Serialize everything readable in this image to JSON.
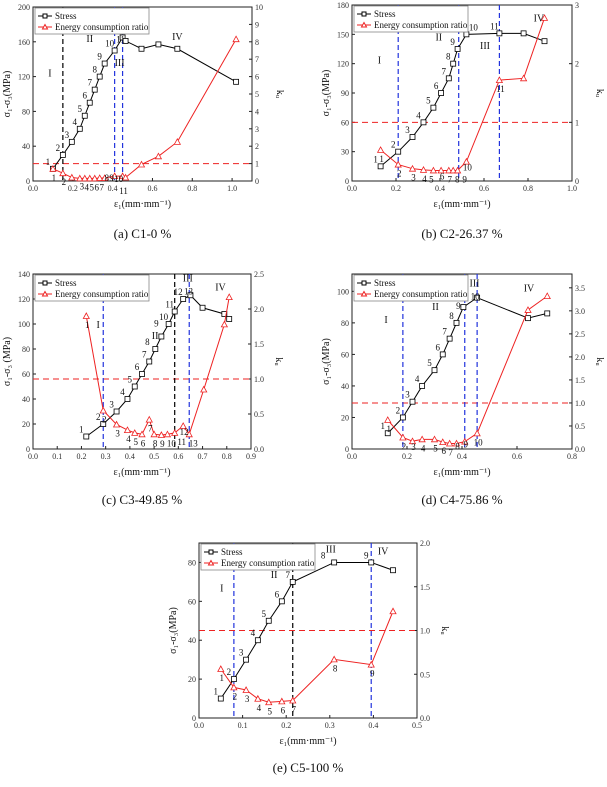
{
  "chart_data": [
    {
      "type": "line",
      "caption": "(a) C1-0 %",
      "xlabel": "ε₁(mm·mm⁻¹)",
      "ylabel": "σ₁-σ₃(MPa)",
      "ylabel_right": "kᵤ",
      "xlim": [
        0,
        1.1
      ],
      "xticks": [
        0.0,
        0.2,
        0.4,
        0.6,
        0.8,
        1.0
      ],
      "ylim": [
        0,
        200
      ],
      "yticks": [
        0,
        40,
        80,
        120,
        160,
        200
      ],
      "y2lim": [
        0,
        10
      ],
      "y2ticks": [
        0,
        1,
        2,
        3,
        4,
        5,
        6,
        7,
        8,
        9,
        10
      ],
      "legend": [
        "Stress",
        "Energy consumption ratio"
      ],
      "legend_position": "top-left",
      "threshold_right": 1,
      "dividers": [
        {
          "x": 0.15,
          "color": "#000000"
        },
        {
          "x": 0.41,
          "color": "#2233dd"
        },
        {
          "x": 0.45,
          "color": "#2233dd"
        }
      ],
      "stages": [
        "I",
        "II",
        "III",
        "IV"
      ],
      "series": [
        {
          "name": "Stress",
          "axis": "left",
          "color": "#000000",
          "x": [
            0.1,
            0.15,
            0.195,
            0.235,
            0.26,
            0.285,
            0.31,
            0.335,
            0.36,
            0.41,
            0.45,
            0.465,
            0.545,
            0.63,
            0.725,
            1.02
          ],
          "y": [
            14,
            30,
            45,
            60,
            75,
            90,
            105,
            120,
            135,
            150,
            165,
            161,
            152,
            157,
            152,
            114
          ],
          "labels": [
            "1",
            "2",
            "3",
            "4",
            "5",
            "6",
            "7",
            "8",
            "9",
            "10",
            "11"
          ]
        },
        {
          "name": "Energy consumption ratio",
          "axis": "right",
          "color": "#ee2222",
          "x": [
            0.1,
            0.15,
            0.195,
            0.235,
            0.26,
            0.285,
            0.31,
            0.335,
            0.36,
            0.41,
            0.45,
            0.465,
            0.545,
            0.63,
            0.725,
            1.02
          ],
          "y": [
            0.7,
            0.45,
            0.2,
            0.15,
            0.15,
            0.15,
            0.15,
            0.17,
            0.17,
            0.28,
            0.28,
            0.2,
            0.95,
            1.42,
            2.25,
            8.15
          ],
          "labels": [
            "1",
            "2",
            "3",
            "4",
            "5",
            "6",
            "7",
            "8",
            "9",
            "10",
            "11"
          ]
        }
      ]
    },
    {
      "type": "line",
      "caption": "(b) C2-26.37 %",
      "xlabel": "ε₁(mm·mm⁻¹)",
      "ylabel": "σ₁-σ₃(MPa)",
      "ylabel_right": "kᵤ",
      "xlim": [
        0,
        1
      ],
      "xticks": [
        0.0,
        0.2,
        0.4,
        0.6,
        0.8,
        1.0
      ],
      "ylim": [
        0,
        180
      ],
      "yticks": [
        0,
        30,
        60,
        90,
        120,
        150,
        180
      ],
      "y2lim": [
        0,
        3
      ],
      "y2ticks": [
        0,
        1,
        2,
        3
      ],
      "legend": [
        "Stress",
        "Energy consumption ratio"
      ],
      "legend_position": "top-left",
      "threshold_right": 1,
      "dividers": [
        {
          "x": 0.21,
          "color": "#2233dd"
        },
        {
          "x": 0.485,
          "color": "#2233dd"
        },
        {
          "x": 0.67,
          "color": "#2233dd"
        }
      ],
      "stages": [
        "I",
        "II",
        "III",
        "IV"
      ],
      "series": [
        {
          "name": "Stress",
          "axis": "left",
          "color": "#000000",
          "x": [
            0.13,
            0.21,
            0.275,
            0.325,
            0.37,
            0.405,
            0.44,
            0.46,
            0.48,
            0.52,
            0.67,
            0.78,
            0.875
          ],
          "y": [
            15,
            30,
            45,
            60,
            75,
            90,
            105,
            120,
            135,
            150,
            151,
            151,
            143
          ],
          "labels": [
            "1",
            "2",
            "3",
            "4",
            "5",
            "6",
            "7",
            "8",
            "9",
            "10",
            "11"
          ]
        },
        {
          "name": "Energy consumption ratio",
          "axis": "right",
          "color": "#ee2222",
          "x": [
            0.13,
            0.21,
            0.275,
            0.325,
            0.37,
            0.405,
            0.44,
            0.46,
            0.48,
            0.52,
            0.67,
            0.78,
            0.875
          ],
          "y": [
            0.53,
            0.28,
            0.21,
            0.19,
            0.18,
            0.18,
            0.18,
            0.18,
            0.18,
            0.33,
            1.72,
            1.75,
            2.78
          ],
          "labels": [
            "1",
            "2",
            "3",
            "4",
            "5",
            "6",
            "7",
            "8",
            "9",
            "10",
            "11"
          ]
        }
      ]
    },
    {
      "type": "line",
      "caption": "(c) C3-49.85 %",
      "xlabel": "ε₁(mm·mm⁻¹)",
      "ylabel": "σ₁-σ₃ (MPa)",
      "ylabel_right": "kᵤ",
      "xlim": [
        0,
        0.9
      ],
      "xticks": [
        0.0,
        0.1,
        0.2,
        0.3,
        0.4,
        0.5,
        0.6,
        0.7,
        0.8,
        0.9
      ],
      "ylim": [
        0,
        140
      ],
      "yticks": [
        0,
        20,
        40,
        60,
        80,
        100,
        120,
        140
      ],
      "y2lim": [
        0,
        2.5
      ],
      "y2ticks": [
        0.0,
        0.5,
        1.0,
        1.5,
        2.0,
        2.5
      ],
      "legend": [
        "Stress",
        "Energy consumption ratio"
      ],
      "legend_position": "top-left",
      "threshold_right": 1,
      "dividers": [
        {
          "x": 0.29,
          "color": "#2233dd"
        },
        {
          "x": 0.585,
          "color": "#000000"
        },
        {
          "x": 0.645,
          "color": "#2233dd"
        }
      ],
      "stages": [
        "I",
        "II",
        "III",
        "IV"
      ],
      "series": [
        {
          "name": "Stress",
          "axis": "left",
          "color": "#000000",
          "x": [
            0.22,
            0.29,
            0.345,
            0.39,
            0.42,
            0.45,
            0.48,
            0.505,
            0.53,
            0.56,
            0.585,
            0.62,
            0.65,
            0.7,
            0.79,
            0.81
          ],
          "y": [
            10,
            20,
            30,
            40,
            50,
            60,
            70,
            80,
            90,
            100,
            110,
            120,
            123,
            113,
            108,
            104
          ],
          "labels": [
            "1",
            "2",
            "3",
            "4",
            "5",
            "6",
            "7",
            "8",
            "9",
            "10",
            "11",
            "12",
            "13"
          ]
        },
        {
          "name": "Energy consumption ratio",
          "axis": "right",
          "color": "#ee2222",
          "x": [
            0.22,
            0.29,
            0.345,
            0.39,
            0.42,
            0.45,
            0.48,
            0.5,
            0.53,
            0.555,
            0.585,
            0.62,
            0.645,
            0.705,
            0.79,
            0.81
          ],
          "y": [
            1.9,
            0.55,
            0.35,
            0.27,
            0.23,
            0.21,
            0.42,
            0.21,
            0.2,
            0.21,
            0.23,
            0.33,
            0.21,
            0.85,
            1.78,
            2.17
          ],
          "labels": [
            "1",
            "2",
            "3",
            "4",
            "5",
            "6",
            "7",
            "8",
            "9",
            "10",
            "11",
            "12",
            "13"
          ]
        }
      ]
    },
    {
      "type": "line",
      "caption": "(d) C4-75.86 %",
      "xlabel": "ε₁(mm·mm⁻¹)",
      "ylabel": "σ₁-σ₃(MPa)",
      "ylabel_right": "kᵤ",
      "xlim": [
        0,
        0.8
      ],
      "xticks": [
        0.0,
        0.2,
        0.4,
        0.6,
        0.8
      ],
      "ylim": [
        0,
        111
      ],
      "yticks": [
        0,
        20,
        40,
        60,
        80,
        100
      ],
      "y2lim": [
        0,
        3.8
      ],
      "y2ticks": [
        0.0,
        0.5,
        1.0,
        1.5,
        2.0,
        2.5,
        3.0,
        3.5
      ],
      "legend": [
        "Stress",
        "Energy consumption ratio"
      ],
      "legend_position": "top-left",
      "threshold_right": 1,
      "dividers": [
        {
          "x": 0.185,
          "color": "#2233dd"
        },
        {
          "x": 0.41,
          "color": "#2233dd"
        },
        {
          "x": 0.455,
          "color": "#2233dd"
        }
      ],
      "stages": [
        "I",
        "II",
        "III",
        "IV"
      ],
      "series": [
        {
          "name": "Stress",
          "axis": "left",
          "color": "#000000",
          "x": [
            0.13,
            0.185,
            0.22,
            0.255,
            0.3,
            0.33,
            0.355,
            0.38,
            0.405,
            0.455,
            0.64,
            0.71
          ],
          "y": [
            10,
            20,
            30,
            40,
            50,
            60,
            70,
            80,
            90,
            96,
            83,
            86
          ],
          "labels": [
            "1",
            "2",
            "3",
            "4",
            "5",
            "6",
            "7",
            "8",
            "9",
            "10"
          ]
        },
        {
          "name": "Energy consumption ratio",
          "axis": "right",
          "color": "#ee2222",
          "x": [
            0.13,
            0.185,
            0.22,
            0.255,
            0.3,
            0.33,
            0.355,
            0.38,
            0.41,
            0.455,
            0.64,
            0.71
          ],
          "y": [
            0.63,
            0.25,
            0.17,
            0.21,
            0.21,
            0.15,
            0.12,
            0.12,
            0.16,
            0.34,
            3.02,
            3.32
          ],
          "labels": [
            "1",
            "2",
            "3",
            "4",
            "5",
            "6",
            "7",
            "8",
            "9",
            "10"
          ]
        }
      ]
    },
    {
      "type": "line",
      "caption": "(e) C5-100 %",
      "xlabel": "ε₁(mm·mm⁻¹)",
      "ylabel": "σ₁-σ₃(MPa)",
      "ylabel_right": "kᵤ",
      "xlim": [
        0,
        0.5
      ],
      "xticks": [
        0.0,
        0.1,
        0.2,
        0.3,
        0.4,
        0.5
      ],
      "ylim": [
        0,
        90
      ],
      "yticks": [
        0,
        20,
        40,
        60,
        80
      ],
      "y2lim": [
        0,
        2
      ],
      "y2ticks": [
        0.0,
        0.5,
        1.0,
        1.5,
        2.0
      ],
      "legend": [
        "Stress",
        "Energy consumption ratio"
      ],
      "legend_position": "top-left",
      "threshold_right": 1,
      "dividers": [
        {
          "x": 0.08,
          "color": "#2233dd"
        },
        {
          "x": 0.215,
          "color": "#000000"
        },
        {
          "x": 0.395,
          "color": "#2233dd"
        }
      ],
      "stages": [
        "I",
        "II",
        "III",
        "IV"
      ],
      "series": [
        {
          "name": "Stress",
          "axis": "left",
          "color": "#000000",
          "x": [
            0.05,
            0.08,
            0.108,
            0.135,
            0.16,
            0.19,
            0.215,
            0.31,
            0.395,
            0.445
          ],
          "y": [
            10,
            20,
            30,
            40,
            50,
            60,
            70,
            80,
            80,
            76
          ],
          "labels": [
            "1",
            "2",
            "3",
            "4",
            "5",
            "6",
            "7",
            "8",
            "9"
          ]
        },
        {
          "name": "Energy consumption ratio",
          "axis": "right",
          "color": "#ee2222",
          "x": [
            0.05,
            0.08,
            0.108,
            0.135,
            0.16,
            0.19,
            0.215,
            0.31,
            0.395,
            0.445
          ],
          "y": [
            0.56,
            0.35,
            0.32,
            0.22,
            0.18,
            0.19,
            0.2,
            0.67,
            0.61,
            1.22
          ],
          "labels": [
            "1",
            "2",
            "3",
            "4",
            "5",
            "6",
            "7",
            "8",
            "9"
          ]
        }
      ]
    }
  ]
}
